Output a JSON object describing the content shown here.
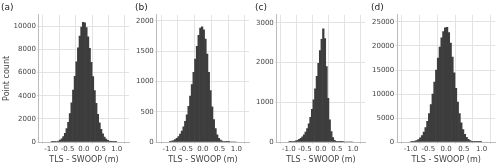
{
  "chart_data": [
    {
      "type": "histogram",
      "title": "(a)",
      "x_label": "TLS - SWOOP (m)",
      "y_label": "Point count",
      "color": "#3d3d3d",
      "grid": true,
      "bins": [
        -1.0,
        -0.95,
        -0.9,
        -0.85,
        -0.8,
        -0.75,
        -0.7,
        -0.65,
        -0.6,
        -0.55,
        -0.5,
        -0.45,
        -0.4,
        -0.35,
        -0.3,
        -0.25,
        -0.2,
        -0.15,
        -0.1,
        -0.05,
        0.0,
        0.05,
        0.1,
        0.15,
        0.2,
        0.25,
        0.3,
        0.35,
        0.4,
        0.45,
        0.5,
        0.55,
        0.6,
        0.65,
        0.7,
        0.75,
        0.8,
        0.85,
        0.9,
        0.95,
        1.0
      ],
      "values": [
        5,
        10,
        20,
        40,
        80,
        160,
        270,
        460,
        740,
        1150,
        1700,
        2450,
        3380,
        4480,
        5680,
        6940,
        8140,
        9170,
        9940,
        10350,
        10300,
        9900,
        9100,
        8100,
        6900,
        5650,
        4450,
        3350,
        2400,
        1650,
        1100,
        700,
        430,
        250,
        140,
        70,
        35,
        15,
        8,
        4
      ],
      "xlim": [
        -1.1,
        1.1
      ],
      "xticks": [
        {
          "value": -1,
          "label": "-1.0"
        },
        -0.5,
        {
          "value": 0,
          "label": "0.0"
        },
        0.5,
        {
          "value": 1,
          "label": "1.0"
        }
      ],
      "ylim": [
        0,
        11000
      ],
      "yticks": [
        0,
        2000,
        4000,
        6000,
        8000,
        10000
      ]
    },
    {
      "type": "histogram",
      "title": "(b)",
      "x_label": "TLS - SWOOP (m)",
      "color": "#3d3d3d",
      "grid": true,
      "bins": [
        -1.0,
        -0.95,
        -0.9,
        -0.85,
        -0.8,
        -0.75,
        -0.7,
        -0.65,
        -0.6,
        -0.55,
        -0.5,
        -0.45,
        -0.4,
        -0.35,
        -0.3,
        -0.25,
        -0.2,
        -0.15,
        -0.1,
        -0.05,
        0.0,
        0.05,
        0.1,
        0.15,
        0.2,
        0.25,
        0.3,
        0.35,
        0.4,
        0.45,
        0.5,
        0.55,
        0.6,
        0.65,
        0.7,
        0.75,
        0.8,
        0.85,
        0.9,
        0.95,
        1.0
      ],
      "values": [
        10,
        15,
        25,
        40,
        60,
        90,
        130,
        180,
        250,
        340,
        450,
        590,
        760,
        950,
        1150,
        1370,
        1580,
        1760,
        1880,
        1900,
        1850,
        1700,
        1450,
        1150,
        850,
        580,
        370,
        220,
        120,
        60,
        30,
        15,
        8,
        4,
        2,
        1,
        0,
        0,
        0,
        0
      ],
      "xlim": [
        -1.1,
        1.1
      ],
      "xticks": [
        {
          "value": -1,
          "label": "-1.0"
        },
        -0.5,
        {
          "value": 0,
          "label": "0.0"
        },
        0.5,
        {
          "value": 1,
          "label": "1.0"
        }
      ],
      "ylim": [
        0,
        2100
      ],
      "yticks": [
        0,
        500,
        1000,
        1500,
        2000
      ]
    },
    {
      "type": "histogram",
      "title": "(c)",
      "x_label": "TLS - SWOOP (m)",
      "color": "#3d3d3d",
      "grid": true,
      "bins": [
        -1.0,
        -0.95,
        -0.9,
        -0.85,
        -0.8,
        -0.75,
        -0.7,
        -0.65,
        -0.6,
        -0.55,
        -0.5,
        -0.45,
        -0.4,
        -0.35,
        -0.3,
        -0.25,
        -0.2,
        -0.15,
        -0.1,
        -0.05,
        0.0,
        0.05,
        0.1,
        0.15,
        0.2,
        0.25,
        0.3,
        0.35,
        0.4,
        0.45,
        0.5,
        0.55,
        0.6,
        0.65,
        0.7,
        0.75,
        0.8,
        0.85,
        0.9,
        0.95,
        1.0
      ],
      "values": [
        5,
        8,
        12,
        20,
        30,
        45,
        65,
        90,
        130,
        180,
        250,
        340,
        460,
        620,
        820,
        1060,
        1340,
        1650,
        1980,
        2300,
        2580,
        2850,
        2600,
        1900,
        1100,
        560,
        260,
        110,
        45,
        20,
        10,
        5,
        2,
        1,
        0,
        0,
        0,
        0,
        0,
        0
      ],
      "xlim": [
        -1.1,
        1.1
      ],
      "xticks": [
        {
          "value": -1,
          "label": "-1.0"
        },
        -0.5,
        {
          "value": 0,
          "label": "0.0"
        },
        0.5,
        {
          "value": 1,
          "label": "1.0"
        }
      ],
      "ylim": [
        0,
        3200
      ],
      "yticks": [
        0,
        1000,
        2000,
        3000
      ]
    },
    {
      "type": "histogram",
      "title": "(d)",
      "x_label": "TLS - SWOOP (m)",
      "color": "#3d3d3d",
      "grid": true,
      "bins": [
        -1.0,
        -0.95,
        -0.9,
        -0.85,
        -0.8,
        -0.75,
        -0.7,
        -0.65,
        -0.6,
        -0.55,
        -0.5,
        -0.45,
        -0.4,
        -0.35,
        -0.3,
        -0.25,
        -0.2,
        -0.15,
        -0.1,
        -0.05,
        0.0,
        0.05,
        0.1,
        0.15,
        0.2,
        0.25,
        0.3,
        0.35,
        0.4,
        0.45,
        0.5,
        0.55,
        0.6,
        0.65,
        0.7,
        0.75,
        0.8,
        0.85,
        0.9,
        0.95,
        1.0
      ],
      "values": [
        45,
        90,
        170,
        300,
        520,
        850,
        1350,
        2050,
        3000,
        4300,
        5900,
        7800,
        10000,
        12500,
        15000,
        17500,
        19800,
        21700,
        23000,
        23800,
        23900,
        22800,
        20600,
        17700,
        14400,
        11200,
        8300,
        5900,
        4000,
        2600,
        1600,
        950,
        540,
        290,
        150,
        75,
        35,
        15,
        7,
        3
      ],
      "xlim": [
        -1.1,
        1.1
      ],
      "xticks": [
        {
          "value": -1,
          "label": "-1.0"
        },
        -0.5,
        {
          "value": 0,
          "label": "0.0"
        },
        0.5,
        {
          "value": 1,
          "label": "1.0"
        }
      ],
      "ylim": [
        0,
        26500
      ],
      "yticks": [
        0,
        5000,
        10000,
        15000,
        20000,
        25000
      ]
    }
  ]
}
